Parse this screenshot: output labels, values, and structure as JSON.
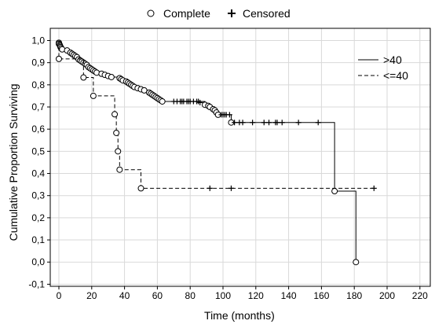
{
  "chart_data": {
    "type": "line",
    "chart_kind": "Kaplan-Meier survival curves",
    "title": "",
    "xlabel": "Time (months)",
    "ylabel": "Cumulative Proportion Surviving",
    "xlim": [
      -2,
      220
    ],
    "ylim": [
      -0.1,
      1.0
    ],
    "x_ticks": [
      0,
      20,
      40,
      60,
      80,
      100,
      120,
      140,
      160,
      180,
      200,
      220
    ],
    "y_ticks": [
      -0.1,
      0.0,
      0.1,
      0.2,
      0.3,
      0.4,
      0.5,
      0.6,
      0.7,
      0.8,
      0.9,
      1.0
    ],
    "y_tick_labels": [
      "-0,1",
      "0,0",
      "0,1",
      "0,2",
      "0,3",
      "0,4",
      "0,5",
      "0,6",
      "0,7",
      "0,8",
      "0,9",
      "1,0"
    ],
    "grid": true,
    "marker_legend": {
      "position": "top",
      "items": [
        {
          "symbol": "circle",
          "label": "Complete"
        },
        {
          "symbol": "plus",
          "label": "Censored"
        }
      ]
    },
    "series_legend": "top-right",
    "series": [
      {
        "name": ">40",
        "style": "solid",
        "events": [
          [
            0,
            0.99
          ],
          [
            0,
            0.985
          ],
          [
            0.5,
            0.98
          ],
          [
            0.8,
            0.975
          ],
          [
            1,
            0.97
          ],
          [
            1.5,
            0.965
          ],
          [
            2,
            0.96
          ],
          [
            5,
            0.955
          ],
          [
            7,
            0.945
          ],
          [
            8,
            0.94
          ],
          [
            9,
            0.935
          ],
          [
            10,
            0.93
          ],
          [
            11,
            0.925
          ],
          [
            12,
            0.915
          ],
          [
            13,
            0.91
          ],
          [
            14,
            0.905
          ],
          [
            15,
            0.9
          ],
          [
            16,
            0.895
          ],
          [
            17,
            0.89
          ],
          [
            18,
            0.88
          ],
          [
            19,
            0.875
          ],
          [
            20,
            0.87
          ],
          [
            21,
            0.865
          ],
          [
            22,
            0.86
          ],
          [
            23,
            0.855
          ],
          [
            26,
            0.85
          ],
          [
            28,
            0.845
          ],
          [
            30,
            0.84
          ],
          [
            32,
            0.835
          ],
          [
            37,
            0.83
          ],
          [
            38,
            0.825
          ],
          [
            39,
            0.82
          ],
          [
            41,
            0.815
          ],
          [
            42,
            0.81
          ],
          [
            43,
            0.805
          ],
          [
            44,
            0.8
          ],
          [
            45,
            0.795
          ],
          [
            46,
            0.79
          ],
          [
            48,
            0.785
          ],
          [
            50,
            0.78
          ],
          [
            52,
            0.775
          ],
          [
            55,
            0.765
          ],
          [
            56,
            0.76
          ],
          [
            57,
            0.755
          ],
          [
            58,
            0.75
          ],
          [
            59,
            0.745
          ],
          [
            60,
            0.74
          ],
          [
            61,
            0.735
          ],
          [
            62,
            0.73
          ],
          [
            63,
            0.725
          ],
          [
            89,
            0.71
          ],
          [
            91,
            0.705
          ],
          [
            92,
            0.7
          ],
          [
            94,
            0.69
          ],
          [
            95,
            0.685
          ],
          [
            96,
            0.675
          ],
          [
            97,
            0.665
          ],
          [
            105,
            0.63
          ],
          [
            168,
            0.32
          ],
          [
            181,
            0.0
          ]
        ],
        "censored": [
          [
            70,
            0.725
          ],
          [
            72,
            0.725
          ],
          [
            74,
            0.725
          ],
          [
            75,
            0.725
          ],
          [
            76,
            0.725
          ],
          [
            78,
            0.725
          ],
          [
            79,
            0.725
          ],
          [
            80,
            0.725
          ],
          [
            82,
            0.725
          ],
          [
            84,
            0.725
          ],
          [
            85,
            0.725
          ],
          [
            86,
            0.72
          ],
          [
            99,
            0.665
          ],
          [
            100,
            0.665
          ],
          [
            101,
            0.665
          ],
          [
            102,
            0.665
          ],
          [
            104,
            0.665
          ],
          [
            107,
            0.63
          ],
          [
            110,
            0.63
          ],
          [
            112,
            0.63
          ],
          [
            118,
            0.63
          ],
          [
            125,
            0.63
          ],
          [
            128,
            0.63
          ],
          [
            132,
            0.63
          ],
          [
            133,
            0.63
          ],
          [
            136,
            0.63
          ],
          [
            146,
            0.63
          ],
          [
            158,
            0.63
          ]
        ]
      },
      {
        "name": "<=40",
        "style": "dashed",
        "events": [
          [
            0,
            0.917
          ],
          [
            15,
            0.833
          ],
          [
            21,
            0.75
          ],
          [
            34,
            0.667
          ],
          [
            35,
            0.583
          ],
          [
            36,
            0.5
          ],
          [
            37,
            0.417
          ],
          [
            50,
            0.333
          ]
        ],
        "censored": [
          [
            92,
            0.333
          ],
          [
            105,
            0.333
          ],
          [
            192,
            0.333
          ]
        ]
      }
    ]
  }
}
